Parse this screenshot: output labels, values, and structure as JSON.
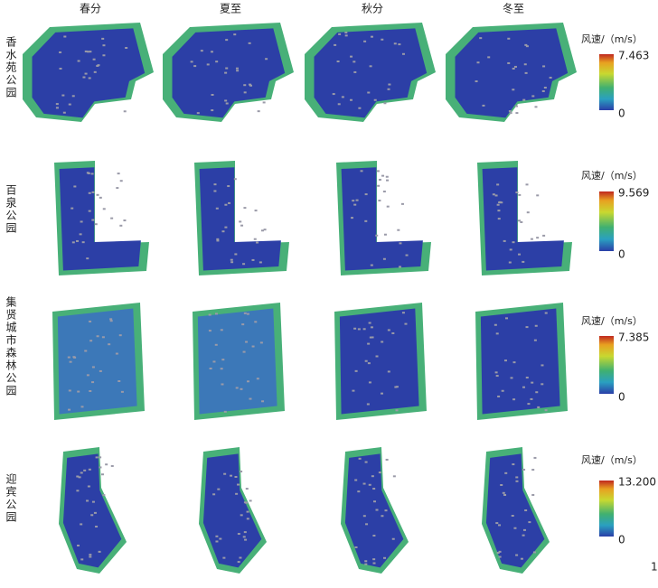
{
  "columns": [
    "春分",
    "夏至",
    "秋分",
    "冬至"
  ],
  "rows": [
    {
      "label": "香水苑公园",
      "legend_title": "风速/（m/s）",
      "max": "7.463",
      "min": "0"
    },
    {
      "label": "百泉公园",
      "legend_title": "风速/（m/s）",
      "max": "9.569",
      "min": "0"
    },
    {
      "label": "集贤城市森林公园",
      "legend_title": "风速/（m/s）",
      "max": "7.385",
      "min": "0"
    },
    {
      "label": "迎宾公园",
      "legend_title": "风速/（m/s）",
      "max": "13.200",
      "min": "0"
    }
  ],
  "page_number": "1"
}
